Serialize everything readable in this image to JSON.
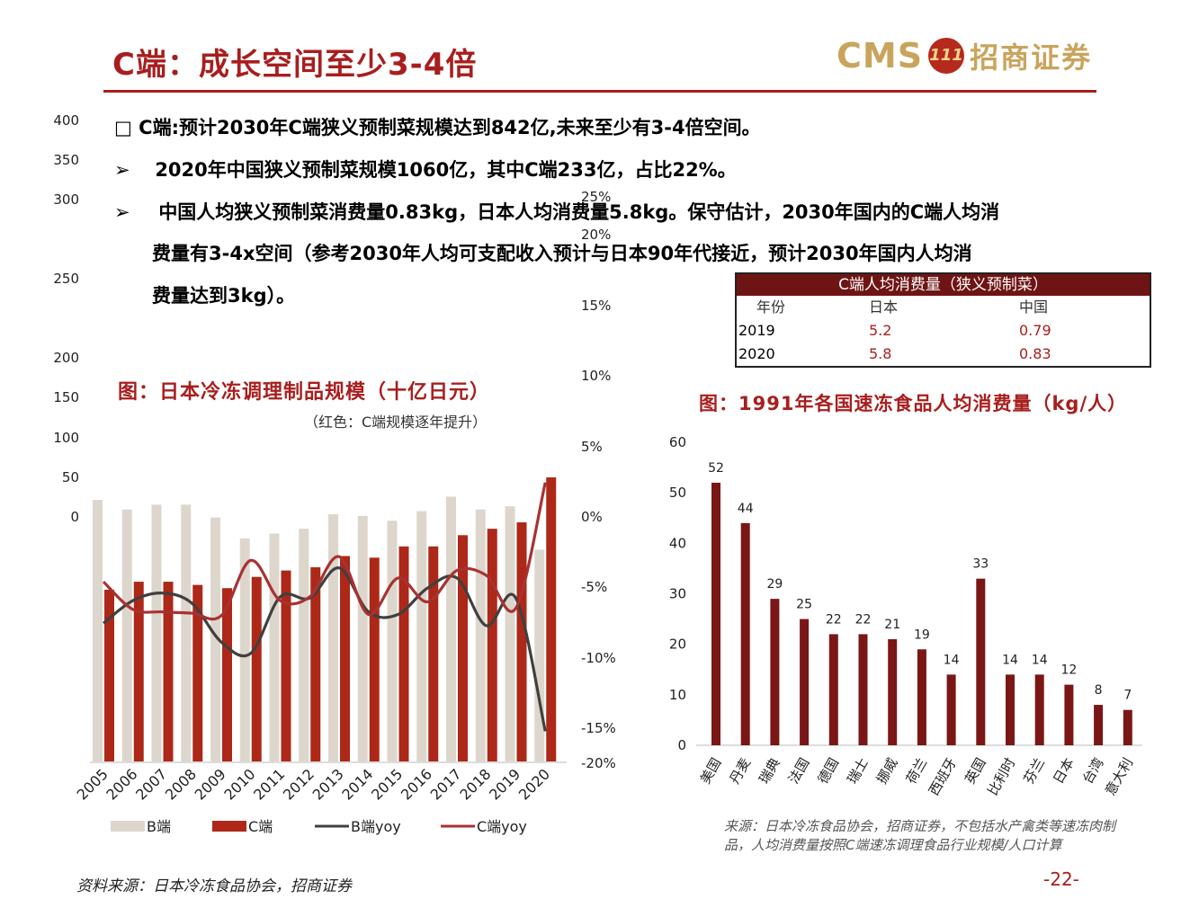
{
  "header": {
    "title": "C端：成长空间至少3-4倍",
    "logo_cms": "CMS",
    "logo_badge": "111",
    "logo_cn": "招商证券"
  },
  "bullets": {
    "b1_mark": "□",
    "b1": "C端:预计2030年C端狭义预制菜规模达到842亿,未来至少有3-4倍空间。",
    "b2_mark": "➢",
    "b2": "2020年中国狭义预制菜规模1060亿，其中C端233亿，占比22%。",
    "b3_mark": "➢",
    "b3_line1": "中国人均狭义预制菜消费量0.83kg，日本人均消费量5.8kg。保守估计，2030年国内的C端人均消",
    "b3_line2": "费量有3-4x空间（参考2030年人均可支配收入预计与日本90年代接近，预计2030年国内人均消",
    "b3_line3": "费量达到3kg）。"
  },
  "left_chart_titles": {
    "title": "图：日本冷冻调理制品规模（十亿日元）",
    "subtitle": "（红色：C端规模逐年提升）"
  },
  "per_capita_table": {
    "header": "C端人均消费量（狭义预制菜）",
    "columns": [
      "年份",
      "日本",
      "中国"
    ],
    "rows": [
      [
        "2019",
        "5.2",
        "0.79"
      ],
      [
        "2020",
        "5.8",
        "0.83"
      ]
    ]
  },
  "right_chart_titles": {
    "title": "图：1991年各国速冻食品人均消费量（kg/人）"
  },
  "notes": {
    "right_source": "来源：日本冷冻食品协会，招商证券，不包括水产禽类等速冻肉制品，人均消费量按照C端速冻调理食品行业规模/人口计算",
    "left_source": "资料来源：日本冷冻食品协会，招商证券",
    "page": "-22-"
  },
  "colors": {
    "brand_red": "#a81e1e",
    "bar_b": "#ddd6cc",
    "bar_c": "#ad2818",
    "line_b": "#404040",
    "line_c": "#a83232",
    "bar_right": "#7b1616"
  },
  "chart_data": [
    {
      "type": "bar",
      "years": [
        "2005",
        "2006",
        "2007",
        "2008",
        "2009",
        "2010",
        "2011",
        "2012",
        "2013",
        "2014",
        "2015",
        "2016",
        "2017",
        "2018",
        "2019",
        "2020"
      ],
      "left_axis_ticks": [
        "400",
        "350",
        "300",
        "250",
        "200",
        "150",
        "100",
        "50",
        "0"
      ],
      "right_axis_ticks": [
        "25%",
        "20%",
        "15%",
        "10%",
        "5%",
        "0%",
        "-5%",
        "-10%",
        "-15%",
        "-20%"
      ],
      "ylim_left": [
        0,
        400
      ],
      "ylim_right": [
        -20,
        25
      ],
      "series": [
        {
          "name": "B端",
          "kind": "bar",
          "axis": "left",
          "values": [
            163,
            157,
            160,
            160,
            152,
            139,
            142,
            145,
            154,
            153,
            150,
            156,
            165,
            157,
            159,
            132
          ]
        },
        {
          "name": "C端",
          "kind": "bar",
          "axis": "left",
          "values": [
            107,
            112,
            112,
            110,
            108,
            115,
            119,
            121,
            128,
            127,
            134,
            134,
            141,
            145,
            149,
            177
          ]
        },
        {
          "name": "B端yoy",
          "kind": "line",
          "axis": "right",
          "values": [
            -9.0,
            -7.2,
            -6.6,
            -7.4,
            -10.5,
            -11.4,
            -6.9,
            -7.0,
            -4.6,
            -8.1,
            -8.3,
            -6.2,
            -5.4,
            -9.2,
            -7.0,
            -17.6
          ]
        },
        {
          "name": "C端yoy",
          "kind": "line",
          "axis": "right",
          "values": [
            -5.7,
            -7.9,
            -8.1,
            -8.2,
            -8.4,
            -4.0,
            -7.2,
            -6.9,
            -3.7,
            -8.3,
            -5.4,
            -7.3,
            -4.8,
            -5.2,
            -7.8,
            2.2
          ]
        }
      ],
      "legend": [
        "B端",
        "C端",
        "B端yoy",
        "C端yoy"
      ],
      "legend_position": "bottom"
    },
    {
      "type": "bar",
      "categories": [
        "美国",
        "丹麦",
        "瑞典",
        "法国",
        "德国",
        "瑞士",
        "挪威",
        "荷兰",
        "西班牙",
        "英国",
        "比利时",
        "芬兰",
        "日本",
        "台湾",
        "意大利"
      ],
      "values": [
        52,
        44,
        29,
        25,
        22,
        22,
        21,
        19,
        14,
        33,
        14,
        14,
        12,
        8,
        7
      ],
      "y_ticks": [
        "60",
        "50",
        "40",
        "30",
        "20",
        "10",
        "0"
      ],
      "ylim": [
        0,
        60
      ]
    }
  ]
}
